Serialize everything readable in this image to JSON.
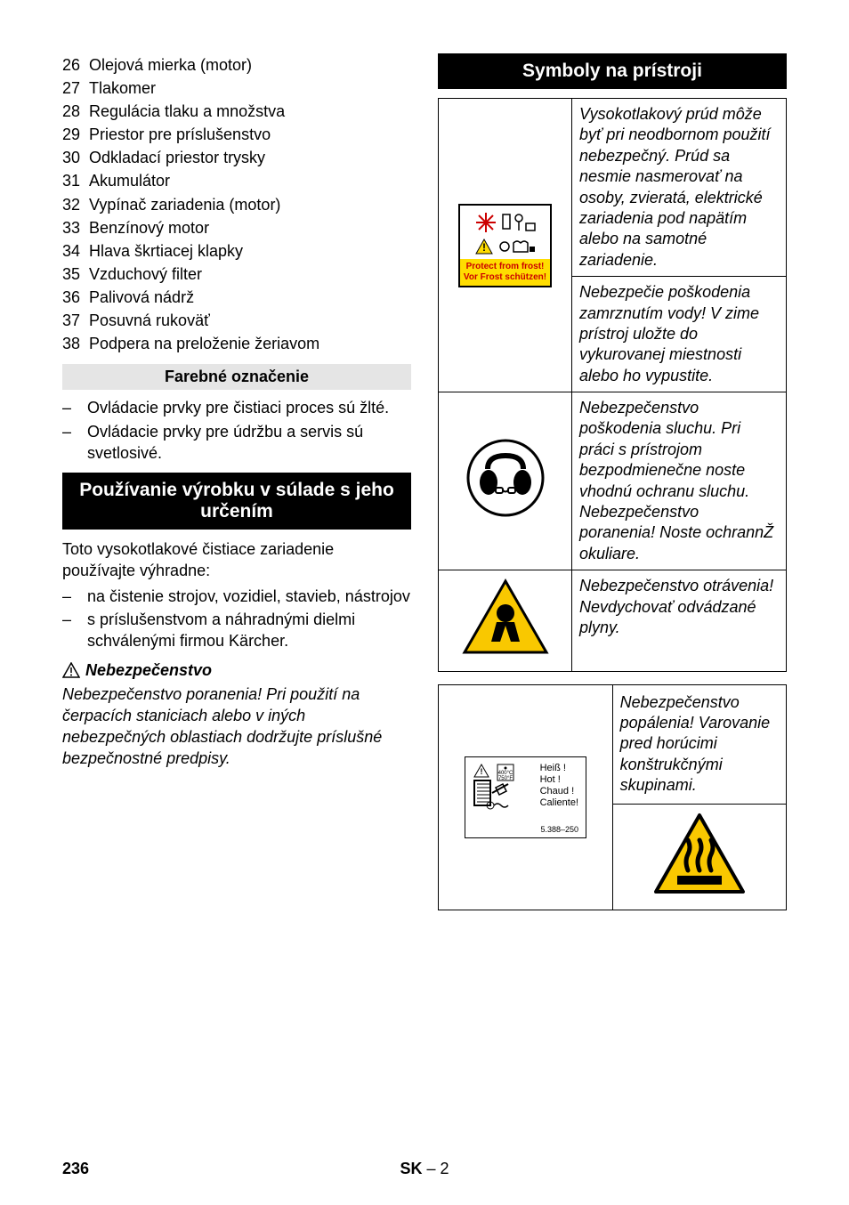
{
  "numList": [
    {
      "n": "26",
      "t": "Olejová mierka (motor)"
    },
    {
      "n": "27",
      "t": "Tlakomer"
    },
    {
      "n": "28",
      "t": "Regulácia tlaku a množstva"
    },
    {
      "n": "29",
      "t": "Priestor pre príslušenstvo"
    },
    {
      "n": "30",
      "t": "Odkladací priestor trysky"
    },
    {
      "n": "31",
      "t": "Akumulátor"
    },
    {
      "n": "32",
      "t": "Vypínač zariadenia (motor)"
    },
    {
      "n": "33",
      "t": "Benzínový motor"
    },
    {
      "n": "34",
      "t": "Hlava škrtiacej klapky"
    },
    {
      "n": "35",
      "t": "Vzduchový filter"
    },
    {
      "n": "36",
      "t": "Palivová nádrž"
    },
    {
      "n": "37",
      "t": "Posuvná rukoväť"
    },
    {
      "n": "38",
      "t": "Podpera na preloženie žeriavom"
    }
  ],
  "headings": {
    "farebne": "Farebné označenie",
    "pouzivanie": "Používanie výrobku v súlade s jeho určením",
    "symboly": "Symboly na prístroji"
  },
  "farebneList": [
    "Ovládacie prvky pre čistiaci proces sú žlté.",
    "Ovládacie prvky pre údržbu a servis sú svetlosivé."
  ],
  "usageIntro": "Toto vysokotlakové čistiace zariadenie používajte výhradne:",
  "usageList": [
    "na čistenie strojov, vozidiel, stavieb, nástrojov",
    "s príslušenstvom a náhradnými dielmi schválenými firmou Kärcher."
  ],
  "danger": {
    "title": "Nebezpečenstvo",
    "text": "Nebezpečenstvo poranenia! Pri použití na čerpacích staniciach alebo v iných nebezpečných oblastiach dodržujte príslušné bezpečnostné predpisy."
  },
  "frost": {
    "line1": "Protect from frost!",
    "line2": "Vor Frost schützen!"
  },
  "symbolRows": [
    "Vysokotlakový prúd môže byť pri neodbornom použití nebezpečný. Prúd sa nesmie nasmerovať na osoby, zvieratá, elektrické zariadenia pod napätím alebo na samotné zariadenie.",
    "Nebezpečie poškodenia zamrznutím vody! V zime prístroj uložte do vykurovanej miestnosti alebo ho vypustite.",
    "Nebezpečenstvo poškodenia sluchu. Pri práci s prístrojom bezpodmienečne noste vhodnú ochranu sluchu.\nNebezpečenstvo poranenia! Noste ochrannŽ okuliare.",
    "Nebezpečenstvo otrávenia! Nevdychovať odvádzané plyny."
  ],
  "hotWords": [
    "Heiß !",
    "Hot !",
    "Chaud !",
    "Caliente!"
  ],
  "hotTemp1": "400°C",
  "hotTemp2": "750°F",
  "hotCode": "5.388–250",
  "burnText": "Nebezpečenstvo popálenia! Varovanie pred horúcimi konštrukčnými skupinami.",
  "footer": {
    "page": "236",
    "lang": "SK",
    "sub": "– 2"
  }
}
